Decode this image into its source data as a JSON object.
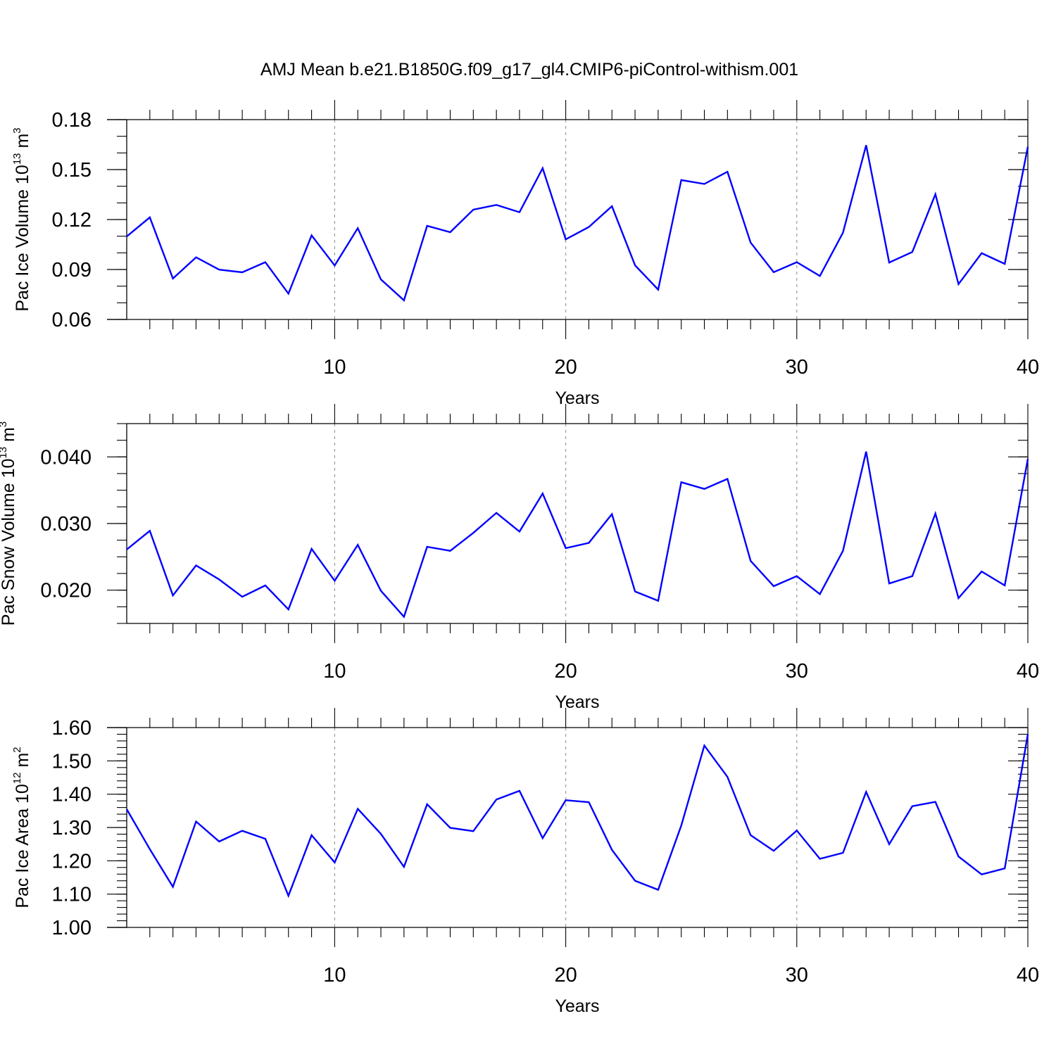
{
  "figure": {
    "title": "AMJ Mean b.e21.B1850G.f09_g17_gl4.CMIP6-piControl-withism.001"
  },
  "colors": {
    "line": "#0000ff",
    "axis": "#000000",
    "grid": "#999999",
    "background": "#ffffff"
  },
  "chart_data": [
    {
      "type": "line",
      "ylabel_main": "Pac Ice Volume 10",
      "ylabel_exp": "13",
      "ylabel_unit": "m",
      "ylabel_unit_exp": "3",
      "xlabel": "Years",
      "xlim": [
        1,
        40
      ],
      "ylim": [
        0.06,
        0.18
      ],
      "xticks": [
        10,
        20,
        30,
        40
      ],
      "yticks": [
        0.06,
        0.09,
        0.12,
        0.15,
        0.18
      ],
      "ytick_labels": [
        "0.06",
        "0.09",
        "0.12",
        "0.15",
        "0.18"
      ],
      "y_minor_step": 0.01,
      "vgrid": [
        10,
        20,
        30
      ],
      "x": [
        1,
        2,
        3,
        4,
        5,
        6,
        7,
        8,
        9,
        10,
        11,
        12,
        13,
        14,
        15,
        16,
        17,
        18,
        19,
        20,
        21,
        22,
        23,
        24,
        25,
        26,
        27,
        28,
        29,
        30,
        31,
        32,
        33,
        34,
        35,
        36,
        37,
        38,
        39,
        40
      ],
      "values": [
        0.1098,
        0.1213,
        0.0846,
        0.0973,
        0.0899,
        0.0883,
        0.0944,
        0.0755,
        0.1105,
        0.0924,
        0.1148,
        0.0841,
        0.0715,
        0.1162,
        0.1124,
        0.1259,
        0.1288,
        0.1244,
        0.1508,
        0.1081,
        0.1155,
        0.128,
        0.0925,
        0.0779,
        0.1437,
        0.1414,
        0.1487,
        0.1062,
        0.0884,
        0.0944,
        0.0861,
        0.1121,
        0.1646,
        0.0942,
        0.1005,
        0.1352,
        0.0812,
        0.0998,
        0.0934,
        0.1637
      ]
    },
    {
      "type": "line",
      "ylabel_main": "Pac Snow Volume 10",
      "ylabel_exp": "13",
      "ylabel_unit": "m",
      "ylabel_unit_exp": "3",
      "xlabel": "Years",
      "xlim": [
        1,
        40
      ],
      "ylim": [
        0.015,
        0.045
      ],
      "xticks": [
        10,
        20,
        30,
        40
      ],
      "yticks": [
        0.02,
        0.03,
        0.04
      ],
      "ytick_labels": [
        "0.020",
        "0.030",
        "0.040"
      ],
      "y_minor_step": 0.0025,
      "vgrid": [
        10,
        20,
        30
      ],
      "x": [
        1,
        2,
        3,
        4,
        5,
        6,
        7,
        8,
        9,
        10,
        11,
        12,
        13,
        14,
        15,
        16,
        17,
        18,
        19,
        20,
        21,
        22,
        23,
        24,
        25,
        26,
        27,
        28,
        29,
        30,
        31,
        32,
        33,
        34,
        35,
        36,
        37,
        38,
        39,
        40
      ],
      "values": [
        0.0261,
        0.0289,
        0.0192,
        0.0237,
        0.0216,
        0.019,
        0.0207,
        0.0171,
        0.0262,
        0.0214,
        0.0268,
        0.0199,
        0.016,
        0.0265,
        0.0259,
        0.0286,
        0.0316,
        0.0288,
        0.0345,
        0.0263,
        0.0271,
        0.0314,
        0.0198,
        0.0184,
        0.0362,
        0.0352,
        0.0367,
        0.0244,
        0.0206,
        0.0221,
        0.0194,
        0.0259,
        0.0408,
        0.021,
        0.0221,
        0.0315,
        0.0188,
        0.0228,
        0.0207,
        0.0397
      ]
    },
    {
      "type": "line",
      "ylabel_main": "Pac Ice Area 10",
      "ylabel_exp": "12",
      "ylabel_unit": "m",
      "ylabel_unit_exp": "2",
      "xlabel": "Years",
      "xlim": [
        1,
        40
      ],
      "ylim": [
        1.0,
        1.6
      ],
      "xticks": [
        10,
        20,
        30,
        40
      ],
      "yticks": [
        1.0,
        1.1,
        1.2,
        1.3,
        1.4,
        1.5,
        1.6
      ],
      "ytick_labels": [
        "1.00",
        "1.10",
        "1.20",
        "1.30",
        "1.40",
        "1.50",
        "1.60"
      ],
      "y_minor_step": 0.02,
      "vgrid": [
        10,
        20,
        30
      ],
      "x": [
        1,
        2,
        3,
        4,
        5,
        6,
        7,
        8,
        9,
        10,
        11,
        12,
        13,
        14,
        15,
        16,
        17,
        18,
        19,
        20,
        21,
        22,
        23,
        24,
        25,
        26,
        27,
        28,
        29,
        30,
        31,
        32,
        33,
        34,
        35,
        36,
        37,
        38,
        39,
        40
      ],
      "values": [
        1.355,
        1.235,
        1.122,
        1.318,
        1.258,
        1.29,
        1.266,
        1.095,
        1.277,
        1.195,
        1.356,
        1.281,
        1.182,
        1.37,
        1.299,
        1.289,
        1.384,
        1.41,
        1.268,
        1.382,
        1.376,
        1.233,
        1.14,
        1.113,
        1.306,
        1.546,
        1.452,
        1.277,
        1.23,
        1.291,
        1.206,
        1.224,
        1.407,
        1.25,
        1.364,
        1.377,
        1.213,
        1.159,
        1.177,
        1.58
      ]
    }
  ]
}
